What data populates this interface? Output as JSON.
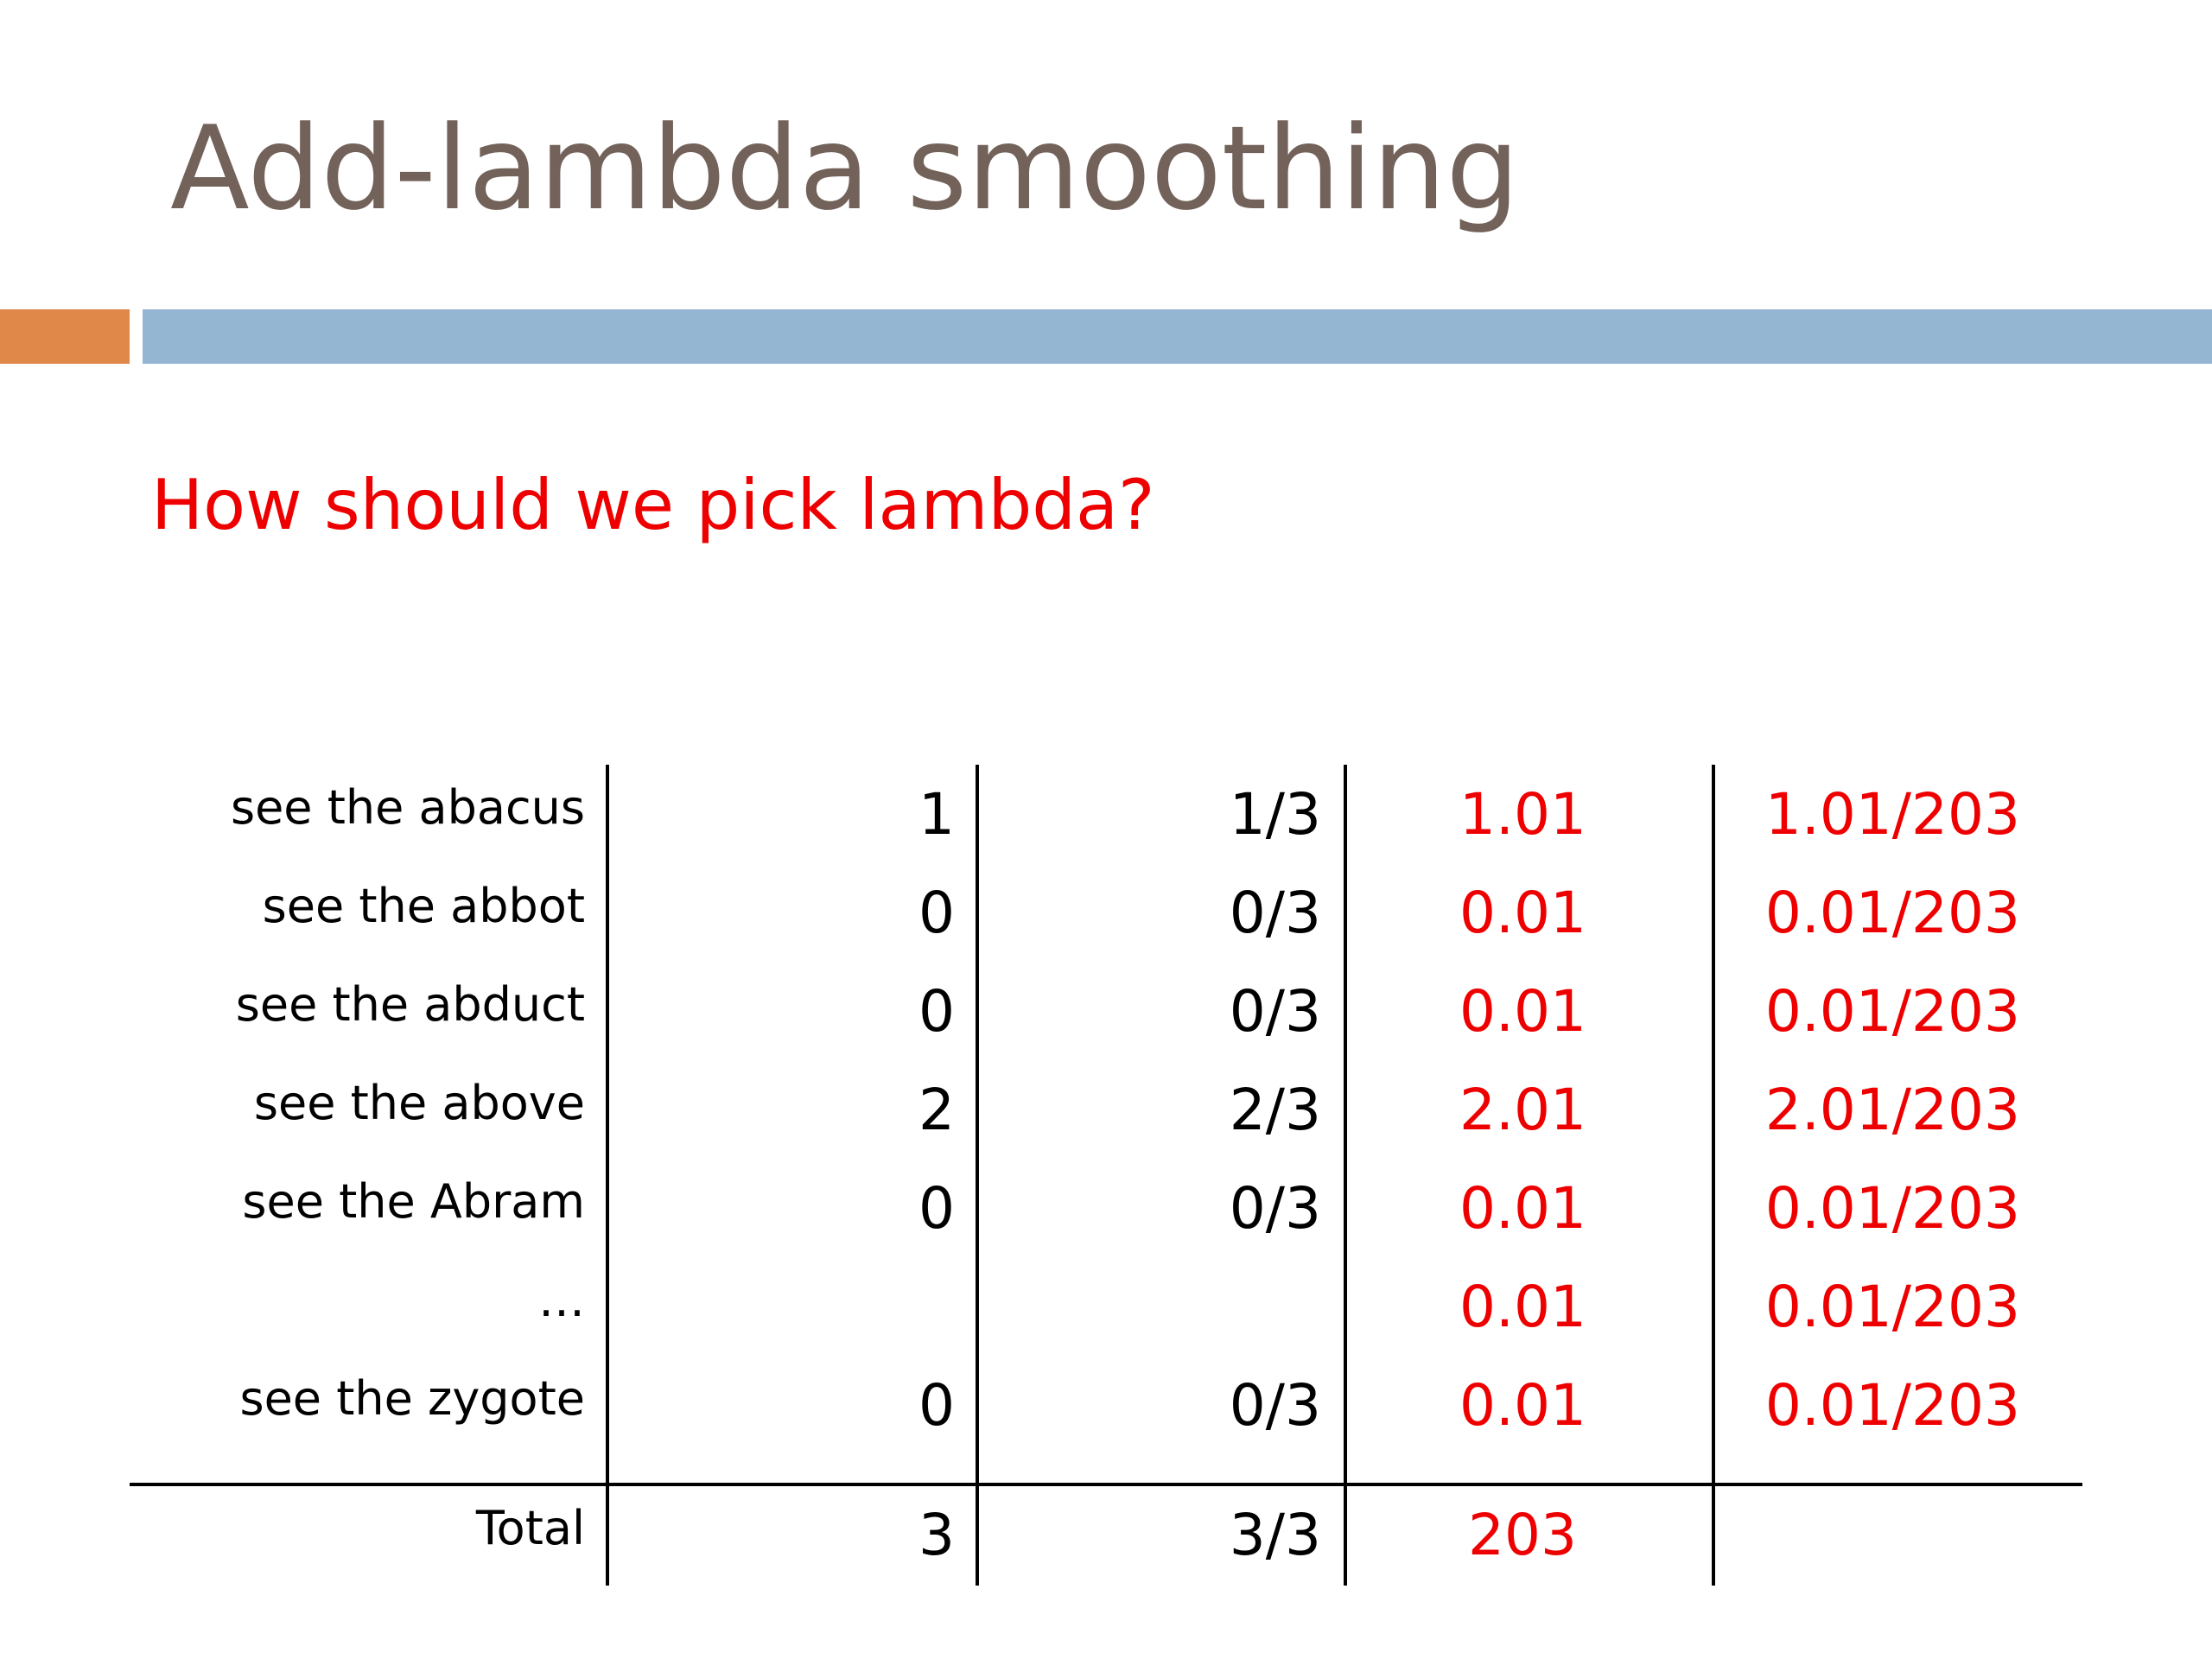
{
  "slide": {
    "title": "Add-lambda smoothing",
    "subtitle": "How should we pick lambda?"
  },
  "colors": {
    "title": "#72625a",
    "accent_orange": "#e0874a",
    "accent_blue": "#95b6d3",
    "highlight_red": "#ee0000"
  },
  "table": {
    "rows": [
      {
        "phrase": "see the abacus",
        "count": "1",
        "prob": "1/3",
        "smoothed_count": "1.01",
        "smoothed_prob": "1.01/203"
      },
      {
        "phrase": "see the abbot",
        "count": "0",
        "prob": "0/3",
        "smoothed_count": "0.01",
        "smoothed_prob": "0.01/203"
      },
      {
        "phrase": "see the abduct",
        "count": "0",
        "prob": "0/3",
        "smoothed_count": "0.01",
        "smoothed_prob": "0.01/203"
      },
      {
        "phrase": "see the above",
        "count": "2",
        "prob": "2/3",
        "smoothed_count": "2.01",
        "smoothed_prob": "2.01/203"
      },
      {
        "phrase": "see the Abram",
        "count": "0",
        "prob": "0/3",
        "smoothed_count": "0.01",
        "smoothed_prob": "0.01/203"
      },
      {
        "phrase": "…",
        "count": "",
        "prob": "",
        "smoothed_count": "0.01",
        "smoothed_prob": "0.01/203"
      },
      {
        "phrase": "see the zygote",
        "count": "0",
        "prob": "0/3",
        "smoothed_count": "0.01",
        "smoothed_prob": "0.01/203"
      }
    ],
    "total": {
      "phrase": "Total",
      "count": "3",
      "prob": "3/3",
      "smoothed_count": "203",
      "smoothed_prob": ""
    }
  }
}
